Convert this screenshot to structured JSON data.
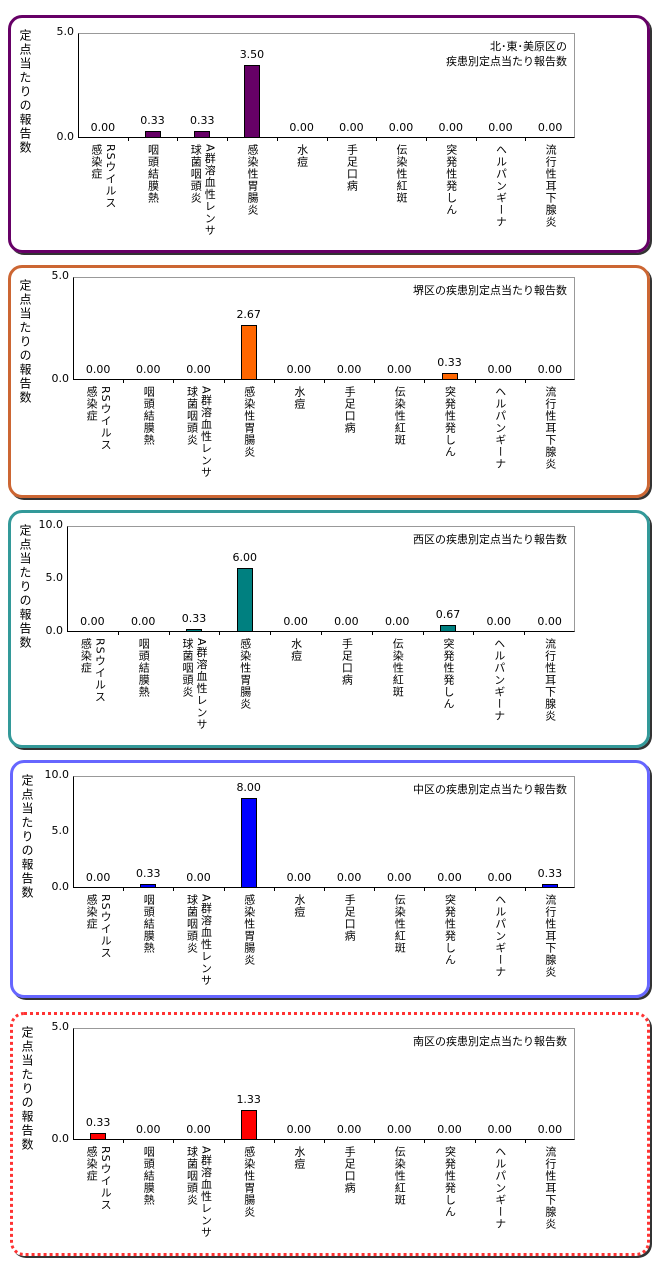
{
  "chart_data": [
    {
      "type": "bar",
      "title": "北･東･美原区の\n疾患別定点当たり報告数",
      "ylabel": "定点当たりの報告数",
      "ylim": [
        0,
        5
      ],
      "yticks": [
        "0.0",
        "5.0"
      ],
      "color": "#660066",
      "border": "#660066",
      "border_style": "solid",
      "categories": [
        "RSウイルス\n感染症",
        "咽頭結膜熱",
        "A群溶血性レンサ\n球菌咽頭炎",
        "感染性胃腸炎",
        "水痘",
        "手足口病",
        "伝染性紅斑",
        "突発性発しん",
        "ヘルパンギーナ",
        "流行性耳下腺炎"
      ],
      "values": [
        0,
        0.33,
        0.33,
        3.5,
        0,
        0,
        0,
        0,
        0,
        0
      ],
      "labels": [
        "0.00",
        "0.33",
        "0.33",
        "3.50",
        "0.00",
        "0.00",
        "0.00",
        "0.00",
        "0.00",
        "0.00"
      ]
    },
    {
      "type": "bar",
      "title": "堺区の疾患別定点当たり報告数",
      "ylabel": "定点当たりの報告数",
      "ylim": [
        0,
        5
      ],
      "yticks": [
        "0.0",
        "5.0"
      ],
      "color": "#ff6600",
      "border": "#cc6633",
      "border_style": "solid",
      "categories": [
        "RSウイルス\n感染症",
        "咽頭結膜熱",
        "A群溶血性レンサ\n球菌咽頭炎",
        "感染性胃腸炎",
        "水痘",
        "手足口病",
        "伝染性紅斑",
        "突発性発しん",
        "ヘルパンギーナ",
        "流行性耳下腺炎"
      ],
      "values": [
        0,
        0,
        0,
        2.67,
        0,
        0,
        0,
        0.33,
        0,
        0
      ],
      "labels": [
        "0.00",
        "0.00",
        "0.00",
        "2.67",
        "0.00",
        "0.00",
        "0.00",
        "0.33",
        "0.00",
        "0.00"
      ]
    },
    {
      "type": "bar",
      "title": "西区の疾患別定点当たり報告数",
      "ylabel": "定点当たりの報告数",
      "ylim": [
        0,
        10
      ],
      "yticks": [
        "0.0",
        "5.0",
        "10.0"
      ],
      "color": "#008080",
      "border": "#339999",
      "border_style": "solid",
      "categories": [
        "RSウイルス\n感染症",
        "咽頭結膜熱",
        "A群溶血性レンサ\n球菌咽頭炎",
        "感染性胃腸炎",
        "水痘",
        "手足口病",
        "伝染性紅斑",
        "突発性発しん",
        "ヘルパンギーナ",
        "流行性耳下腺炎"
      ],
      "values": [
        0,
        0,
        0.33,
        6,
        0,
        0,
        0,
        0.67,
        0,
        0
      ],
      "labels": [
        "0.00",
        "0.00",
        "0.33",
        "6.00",
        "0.00",
        "0.00",
        "0.00",
        "0.67",
        "0.00",
        "0.00"
      ]
    },
    {
      "type": "bar",
      "title": "中区の疾患別定点当たり報告数",
      "ylabel": "定点当たりの報告数",
      "ylim": [
        0,
        10
      ],
      "yticks": [
        "0.0",
        "5.0",
        "10.0"
      ],
      "color": "#0000ff",
      "border": "#6666ff",
      "border_style": "solid",
      "categories": [
        "RSウイルス\n感染症",
        "咽頭結膜熱",
        "A群溶血性レンサ\n球菌咽頭炎",
        "感染性胃腸炎",
        "水痘",
        "手足口病",
        "伝染性紅斑",
        "突発性発しん",
        "ヘルパンギーナ",
        "流行性耳下腺炎"
      ],
      "values": [
        0,
        0.33,
        0,
        8,
        0,
        0,
        0,
        0,
        0,
        0.33
      ],
      "labels": [
        "0.00",
        "0.33",
        "0.00",
        "8.00",
        "0.00",
        "0.00",
        "0.00",
        "0.00",
        "0.00",
        "0.33"
      ]
    },
    {
      "type": "bar",
      "title": "南区の疾患別定点当たり報告数",
      "ylabel": "定点当たりの報告数",
      "ylim": [
        0,
        5
      ],
      "yticks": [
        "0.0",
        "5.0"
      ],
      "color": "#ff0000",
      "border": "#ff3333",
      "border_style": "dotted",
      "categories": [
        "RSウイルス\n感染症",
        "咽頭結膜熱",
        "A群溶血性レンサ\n球菌咽頭炎",
        "感染性胃腸炎",
        "水痘",
        "手足口病",
        "伝染性紅斑",
        "突発性発しん",
        "ヘルパンギーナ",
        "流行性耳下腺炎"
      ],
      "values": [
        0.33,
        0,
        0,
        1.33,
        0,
        0,
        0,
        0,
        0,
        0
      ],
      "labels": [
        "0.33",
        "0.00",
        "0.00",
        "1.33",
        "0.00",
        "0.00",
        "0.00",
        "0.00",
        "0.00",
        "0.00"
      ]
    }
  ]
}
